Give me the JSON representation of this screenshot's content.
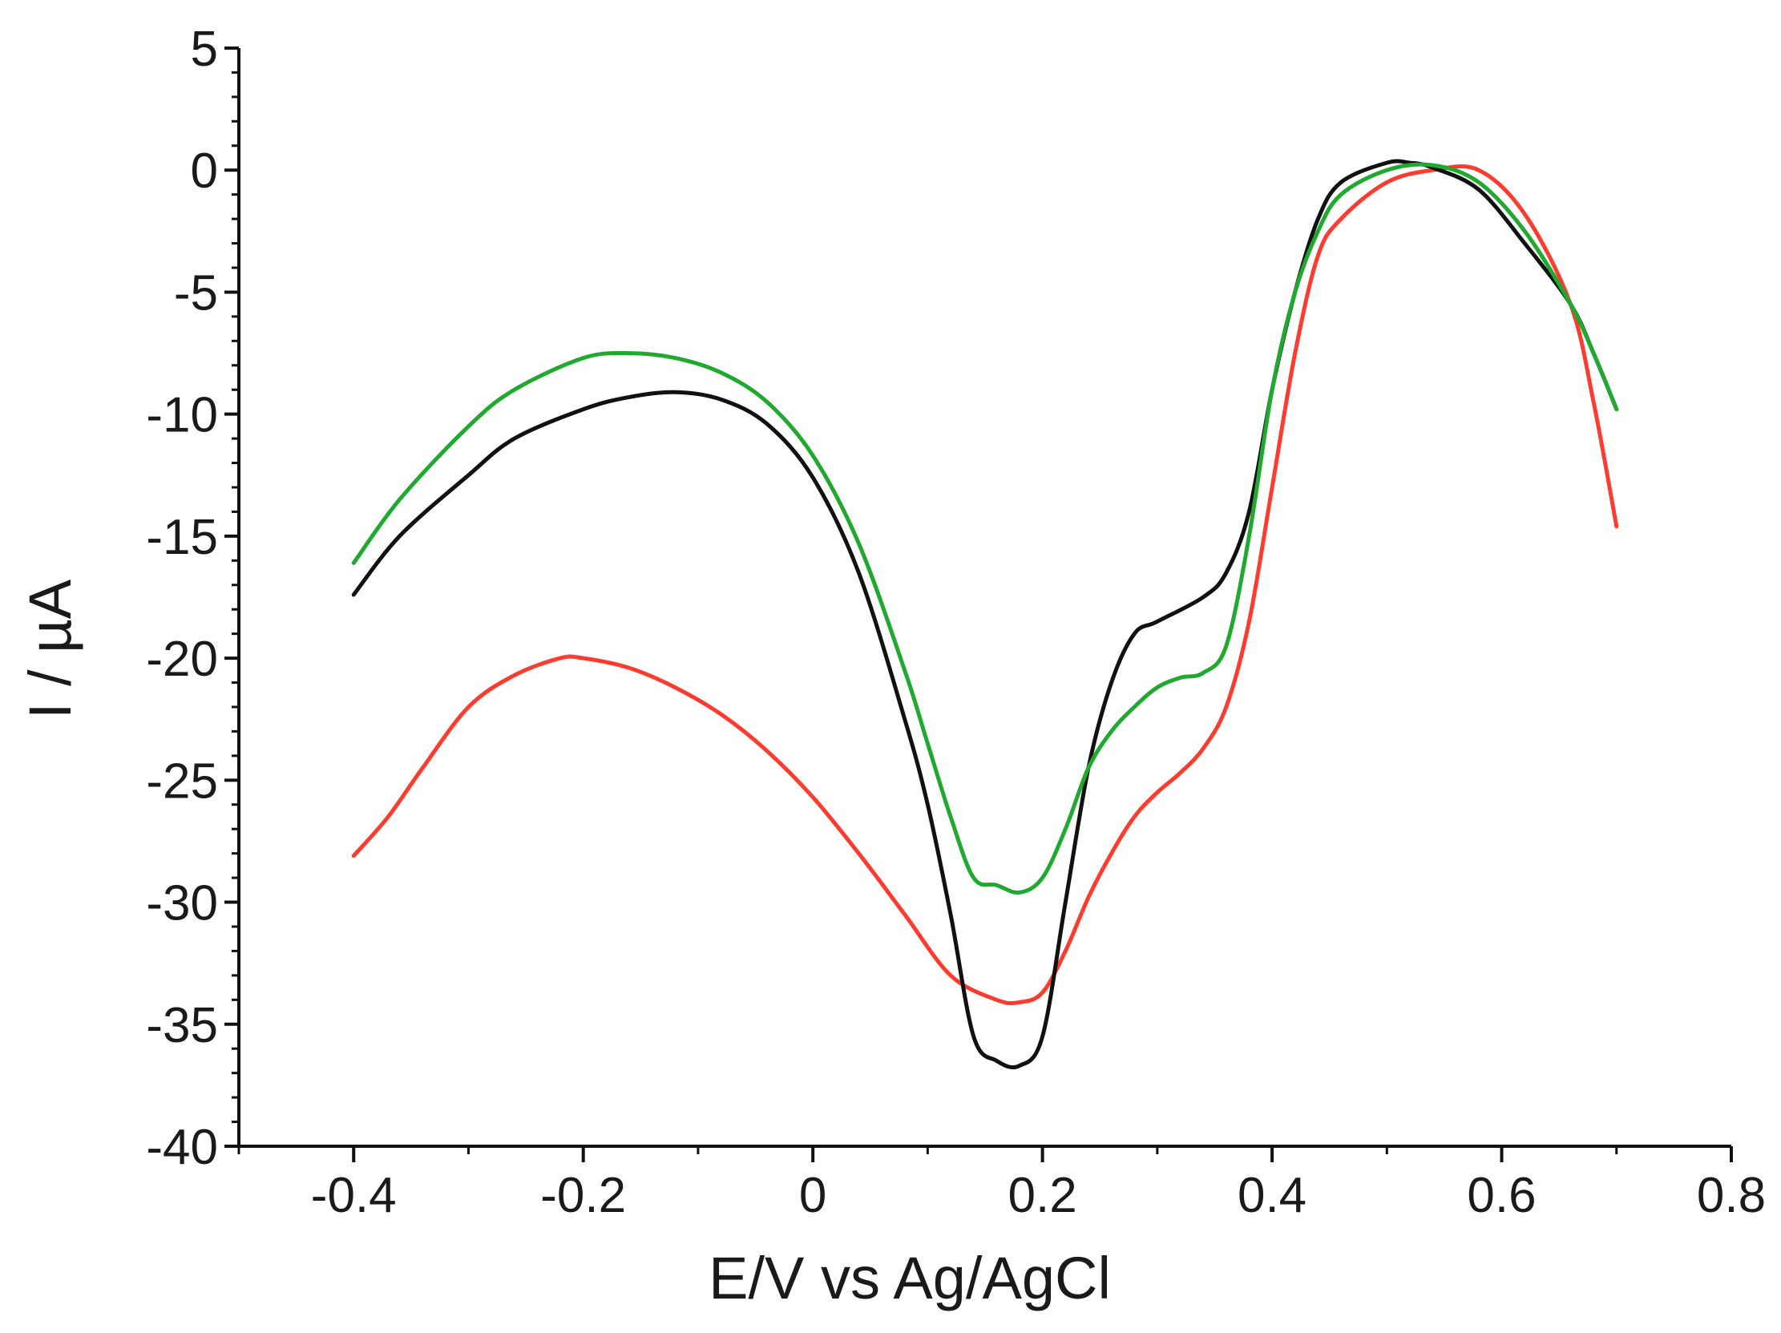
{
  "chart_data": {
    "type": "line",
    "title": "",
    "xlabel": "E/V vs Ag/AgCl",
    "ylabel": "I / µA",
    "xlim": [
      -0.5,
      0.8
    ],
    "ylim": [
      -40,
      5
    ],
    "x_ticks": [
      {
        "value": -0.4,
        "label": "-0.4"
      },
      {
        "value": -0.2,
        "label": "-0.2"
      },
      {
        "value": 0,
        "label": "0"
      },
      {
        "value": 0.2,
        "label": "0.2"
      },
      {
        "value": 0.4,
        "label": "0.4"
      },
      {
        "value": 0.6,
        "label": "0.6"
      },
      {
        "value": 0.8,
        "label": "0.8"
      }
    ],
    "y_ticks": [
      {
        "value": 5,
        "label": "5"
      },
      {
        "value": 0,
        "label": "0"
      },
      {
        "value": -5,
        "label": "-5"
      },
      {
        "value": -10,
        "label": "-10"
      },
      {
        "value": -15,
        "label": "-15"
      },
      {
        "value": -20,
        "label": "-20"
      },
      {
        "value": -25,
        "label": "-25"
      },
      {
        "value": -30,
        "label": "-30"
      },
      {
        "value": -35,
        "label": "-35"
      },
      {
        "value": -40,
        "label": "-40"
      }
    ],
    "grid": false,
    "legend": "none",
    "series": [
      {
        "name": "black",
        "color": "#111111",
        "x": [
          -0.4,
          -0.36,
          -0.3,
          -0.26,
          -0.2,
          -0.16,
          -0.12,
          -0.08,
          -0.04,
          0.0,
          0.04,
          0.08,
          0.1,
          0.12,
          0.14,
          0.16,
          0.18,
          0.2,
          0.22,
          0.24,
          0.26,
          0.28,
          0.3,
          0.34,
          0.36,
          0.38,
          0.4,
          0.42,
          0.44,
          0.46,
          0.5,
          0.52,
          0.54,
          0.58,
          0.62,
          0.66,
          0.68,
          0.7
        ],
        "y": [
          -17.4,
          -15.0,
          -12.5,
          -11.0,
          -9.8,
          -9.3,
          -9.1,
          -9.4,
          -10.4,
          -12.6,
          -16.5,
          -22.5,
          -26.0,
          -30.5,
          -35.5,
          -36.5,
          -36.7,
          -35.5,
          -30.0,
          -24.5,
          -21.0,
          -19.0,
          -18.5,
          -17.5,
          -16.5,
          -14.0,
          -9.0,
          -5.0,
          -2.0,
          -0.5,
          0.3,
          0.3,
          0.1,
          -0.8,
          -3.0,
          -5.5,
          -7.5,
          -9.8
        ]
      },
      {
        "name": "green",
        "color": "#1faa2f",
        "x": [
          -0.4,
          -0.36,
          -0.3,
          -0.26,
          -0.2,
          -0.16,
          -0.12,
          -0.08,
          -0.04,
          0.0,
          0.04,
          0.08,
          0.1,
          0.12,
          0.14,
          0.16,
          0.18,
          0.2,
          0.22,
          0.24,
          0.26,
          0.28,
          0.3,
          0.32,
          0.34,
          0.36,
          0.38,
          0.4,
          0.42,
          0.44,
          0.46,
          0.5,
          0.54,
          0.58,
          0.62,
          0.66,
          0.68,
          0.7
        ],
        "y": [
          -16.1,
          -13.5,
          -10.5,
          -9.0,
          -7.7,
          -7.5,
          -7.7,
          -8.3,
          -9.5,
          -11.7,
          -15.3,
          -20.5,
          -23.5,
          -26.5,
          -29.0,
          -29.3,
          -29.6,
          -29.0,
          -27.0,
          -24.5,
          -23.0,
          -22.0,
          -21.2,
          -20.8,
          -20.6,
          -19.5,
          -15.0,
          -9.0,
          -5.0,
          -2.5,
          -1.0,
          0.0,
          0.2,
          -0.5,
          -2.5,
          -5.5,
          -7.5,
          -9.8
        ]
      },
      {
        "name": "red",
        "color": "#ff3b2f",
        "x": [
          -0.4,
          -0.37,
          -0.34,
          -0.3,
          -0.26,
          -0.22,
          -0.2,
          -0.16,
          -0.12,
          -0.08,
          -0.04,
          0.0,
          0.04,
          0.08,
          0.12,
          0.16,
          0.18,
          0.2,
          0.22,
          0.24,
          0.26,
          0.28,
          0.3,
          0.32,
          0.34,
          0.36,
          0.38,
          0.4,
          0.42,
          0.44,
          0.46,
          0.5,
          0.54,
          0.58,
          0.62,
          0.66,
          0.68,
          0.7
        ],
        "y": [
          -28.1,
          -26.5,
          -24.5,
          -22.0,
          -20.7,
          -20.0,
          -20.0,
          -20.4,
          -21.2,
          -22.3,
          -23.8,
          -25.7,
          -28.0,
          -30.5,
          -33.0,
          -34.0,
          -34.1,
          -33.7,
          -32.0,
          -29.8,
          -28.0,
          -26.5,
          -25.5,
          -24.7,
          -23.7,
          -22.0,
          -18.5,
          -13.0,
          -7.5,
          -3.5,
          -2.0,
          -0.5,
          0.0,
          0.0,
          -1.8,
          -5.5,
          -9.5,
          -14.6
        ]
      }
    ]
  }
}
